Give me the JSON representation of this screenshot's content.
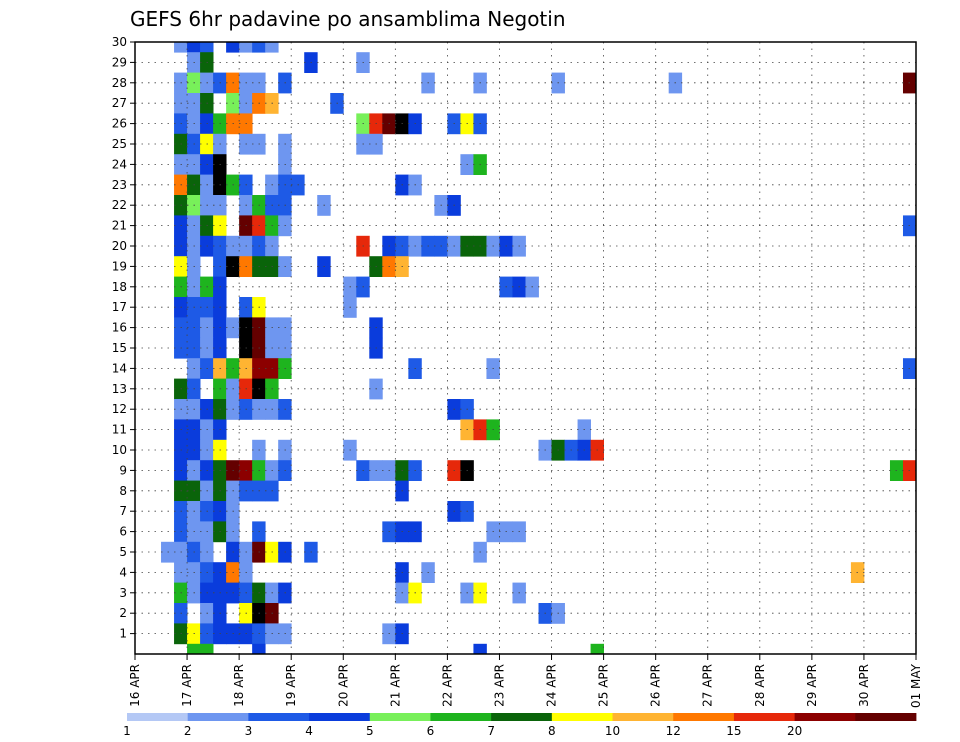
{
  "chart_data": {
    "type": "heatmap",
    "title": "GEFS 6hr padavine po ansamblima Negotin",
    "x_tick_labels": [
      "16 APR",
      "17 APR",
      "18 APR",
      "19 APR",
      "20 APR",
      "21 APR",
      "22 APR",
      "23 APR",
      "24 APR",
      "25 APR",
      "26 APR",
      "27 APR",
      "28 APR",
      "29 APR",
      "30 APR",
      "01 MAY"
    ],
    "y_tick_labels": [
      "1",
      "2",
      "3",
      "4",
      "5",
      "6",
      "7",
      "8",
      "9",
      "10",
      "11",
      "12",
      "13",
      "14",
      "15",
      "16",
      "17",
      "18",
      "19",
      "20",
      "21",
      "22",
      "23",
      "24",
      "25",
      "26",
      "27",
      "28",
      "29",
      "30"
    ],
    "xlim": [
      0,
      60
    ],
    "ylim": [
      0,
      30
    ],
    "grid": true,
    "color_scale": {
      "labels": [
        "1",
        "2",
        "3",
        "4",
        "5",
        "6",
        "7",
        "8",
        "10",
        "12",
        "15",
        "20"
      ],
      "colors": [
        "#b4c8f5",
        "#6e96f0",
        "#1e5ae6",
        "#0a3cdc",
        "#78f05a",
        "#1eb41e",
        "#0a640a",
        "#ffff00",
        "#ffb432",
        "#ff7800",
        "#e6280a",
        "#8c0000",
        "#640000"
      ]
    },
    "cells": [
      [
        3,
        30,
        1
      ],
      [
        4,
        30,
        3
      ],
      [
        5,
        30,
        2
      ],
      [
        7,
        30,
        3
      ],
      [
        8,
        30,
        1
      ],
      [
        9,
        30,
        2
      ],
      [
        10,
        30,
        1
      ],
      [
        4,
        29,
        1
      ],
      [
        5,
        29,
        6
      ],
      [
        13,
        29,
        3
      ],
      [
        17,
        29,
        1
      ],
      [
        3,
        28,
        1
      ],
      [
        4,
        28,
        4
      ],
      [
        5,
        28,
        1
      ],
      [
        6,
        28,
        2
      ],
      [
        7,
        28,
        9
      ],
      [
        8,
        28,
        1
      ],
      [
        9,
        28,
        1
      ],
      [
        11,
        28,
        2
      ],
      [
        22,
        28,
        1
      ],
      [
        26,
        28,
        1
      ],
      [
        32,
        28,
        1
      ],
      [
        41,
        28,
        1
      ],
      [
        59,
        28,
        12
      ],
      [
        3,
        27,
        1
      ],
      [
        4,
        27,
        1
      ],
      [
        5,
        27,
        6
      ],
      [
        7,
        27,
        4
      ],
      [
        8,
        27,
        1
      ],
      [
        9,
        27,
        9
      ],
      [
        10,
        27,
        8
      ],
      [
        15,
        27,
        2
      ],
      [
        3,
        26,
        2
      ],
      [
        4,
        26,
        1
      ],
      [
        5,
        26,
        3
      ],
      [
        6,
        26,
        5
      ],
      [
        7,
        26,
        9
      ],
      [
        8,
        26,
        9
      ],
      [
        17,
        26,
        4
      ],
      [
        18,
        26,
        10
      ],
      [
        19,
        26,
        12
      ],
      [
        20,
        26,
        13
      ],
      [
        21,
        26,
        3
      ],
      [
        24,
        26,
        2
      ],
      [
        25,
        26,
        7
      ],
      [
        26,
        26,
        2
      ],
      [
        3,
        25,
        6
      ],
      [
        4,
        25,
        2
      ],
      [
        5,
        25,
        7
      ],
      [
        6,
        25,
        1
      ],
      [
        8,
        25,
        1
      ],
      [
        9,
        25,
        1
      ],
      [
        11,
        25,
        1
      ],
      [
        17,
        25,
        1
      ],
      [
        18,
        25,
        1
      ],
      [
        3,
        24,
        1
      ],
      [
        4,
        24,
        1
      ],
      [
        5,
        24,
        3
      ],
      [
        6,
        24,
        13
      ],
      [
        11,
        24,
        1
      ],
      [
        25,
        24,
        1
      ],
      [
        26,
        24,
        5
      ],
      [
        3,
        23,
        9
      ],
      [
        4,
        23,
        6
      ],
      [
        5,
        23,
        1
      ],
      [
        6,
        23,
        13
      ],
      [
        7,
        23,
        5
      ],
      [
        8,
        23,
        2
      ],
      [
        10,
        23,
        1
      ],
      [
        11,
        23,
        2
      ],
      [
        12,
        23,
        2
      ],
      [
        20,
        23,
        3
      ],
      [
        21,
        23,
        1
      ],
      [
        3,
        22,
        6
      ],
      [
        4,
        22,
        4
      ],
      [
        5,
        22,
        1
      ],
      [
        6,
        22,
        1
      ],
      [
        8,
        22,
        1
      ],
      [
        9,
        22,
        5
      ],
      [
        10,
        22,
        2
      ],
      [
        11,
        22,
        2
      ],
      [
        14,
        22,
        1
      ],
      [
        23,
        22,
        1
      ],
      [
        24,
        22,
        3
      ],
      [
        3,
        21,
        3
      ],
      [
        4,
        21,
        1
      ],
      [
        5,
        21,
        6
      ],
      [
        6,
        21,
        7
      ],
      [
        8,
        21,
        12
      ],
      [
        9,
        21,
        10
      ],
      [
        10,
        21,
        5
      ],
      [
        11,
        21,
        1
      ],
      [
        59,
        21,
        2
      ],
      [
        3,
        20,
        3
      ],
      [
        4,
        20,
        1
      ],
      [
        5,
        20,
        3
      ],
      [
        6,
        20,
        2
      ],
      [
        7,
        20,
        1
      ],
      [
        8,
        20,
        1
      ],
      [
        9,
        20,
        2
      ],
      [
        10,
        20,
        1
      ],
      [
        17,
        20,
        10
      ],
      [
        19,
        20,
        3
      ],
      [
        20,
        20,
        2
      ],
      [
        21,
        20,
        1
      ],
      [
        22,
        20,
        2
      ],
      [
        23,
        20,
        2
      ],
      [
        24,
        20,
        1
      ],
      [
        25,
        20,
        6
      ],
      [
        26,
        20,
        6
      ],
      [
        27,
        20,
        1
      ],
      [
        28,
        20,
        3
      ],
      [
        29,
        20,
        1
      ],
      [
        3,
        19,
        7
      ],
      [
        4,
        19,
        1
      ],
      [
        6,
        19,
        2
      ],
      [
        7,
        19,
        13
      ],
      [
        8,
        19,
        9
      ],
      [
        9,
        19,
        6
      ],
      [
        10,
        19,
        6
      ],
      [
        11,
        19,
        1
      ],
      [
        14,
        19,
        3
      ],
      [
        18,
        19,
        6
      ],
      [
        19,
        19,
        9
      ],
      [
        20,
        19,
        8
      ],
      [
        3,
        18,
        5
      ],
      [
        4,
        18,
        1
      ],
      [
        5,
        18,
        5
      ],
      [
        6,
        18,
        3
      ],
      [
        16,
        18,
        1
      ],
      [
        17,
        18,
        2
      ],
      [
        28,
        18,
        2
      ],
      [
        29,
        18,
        3
      ],
      [
        30,
        18,
        1
      ],
      [
        3,
        17,
        3
      ],
      [
        4,
        17,
        2
      ],
      [
        5,
        17,
        2
      ],
      [
        6,
        17,
        3
      ],
      [
        8,
        17,
        2
      ],
      [
        9,
        17,
        7
      ],
      [
        16,
        17,
        1
      ],
      [
        3,
        16,
        2
      ],
      [
        4,
        16,
        2
      ],
      [
        5,
        16,
        1
      ],
      [
        6,
        16,
        3
      ],
      [
        7,
        16,
        1
      ],
      [
        8,
        16,
        13
      ],
      [
        9,
        16,
        12
      ],
      [
        10,
        16,
        1
      ],
      [
        11,
        16,
        1
      ],
      [
        18,
        16,
        3
      ],
      [
        3,
        15,
        2
      ],
      [
        4,
        15,
        2
      ],
      [
        5,
        15,
        1
      ],
      [
        6,
        15,
        3
      ],
      [
        8,
        15,
        13
      ],
      [
        9,
        15,
        12
      ],
      [
        10,
        15,
        1
      ],
      [
        11,
        15,
        1
      ],
      [
        18,
        15,
        3
      ],
      [
        4,
        14,
        1
      ],
      [
        5,
        14,
        2
      ],
      [
        6,
        14,
        8
      ],
      [
        7,
        14,
        5
      ],
      [
        8,
        14,
        8
      ],
      [
        9,
        14,
        11
      ],
      [
        10,
        14,
        11
      ],
      [
        11,
        14,
        5
      ],
      [
        21,
        14,
        2
      ],
      [
        27,
        14,
        1
      ],
      [
        59,
        14,
        2
      ],
      [
        3,
        13,
        6
      ],
      [
        4,
        13,
        2
      ],
      [
        6,
        13,
        5
      ],
      [
        7,
        13,
        1
      ],
      [
        8,
        13,
        10
      ],
      [
        9,
        13,
        13
      ],
      [
        10,
        13,
        5
      ],
      [
        18,
        13,
        1
      ],
      [
        3,
        12,
        1
      ],
      [
        4,
        12,
        1
      ],
      [
        5,
        12,
        3
      ],
      [
        6,
        12,
        6
      ],
      [
        7,
        12,
        1
      ],
      [
        8,
        12,
        2
      ],
      [
        9,
        12,
        1
      ],
      [
        10,
        12,
        1
      ],
      [
        11,
        12,
        2
      ],
      [
        24,
        12,
        3
      ],
      [
        25,
        12,
        2
      ],
      [
        3,
        11,
        3
      ],
      [
        4,
        11,
        3
      ],
      [
        5,
        11,
        1
      ],
      [
        6,
        11,
        3
      ],
      [
        25,
        11,
        8
      ],
      [
        26,
        11,
        10
      ],
      [
        27,
        11,
        5
      ],
      [
        34,
        11,
        1
      ],
      [
        3,
        10,
        3
      ],
      [
        4,
        10,
        3
      ],
      [
        5,
        10,
        1
      ],
      [
        6,
        10,
        7
      ],
      [
        9,
        10,
        1
      ],
      [
        11,
        10,
        1
      ],
      [
        16,
        10,
        1
      ],
      [
        31,
        10,
        1
      ],
      [
        32,
        10,
        6
      ],
      [
        33,
        10,
        2
      ],
      [
        34,
        10,
        3
      ],
      [
        35,
        10,
        10
      ],
      [
        3,
        9,
        3
      ],
      [
        4,
        9,
        1
      ],
      [
        5,
        9,
        3
      ],
      [
        6,
        9,
        6
      ],
      [
        7,
        9,
        12
      ],
      [
        8,
        9,
        11
      ],
      [
        9,
        9,
        5
      ],
      [
        10,
        9,
        1
      ],
      [
        11,
        9,
        2
      ],
      [
        17,
        9,
        2
      ],
      [
        18,
        9,
        1
      ],
      [
        19,
        9,
        1
      ],
      [
        20,
        9,
        6
      ],
      [
        21,
        9,
        2
      ],
      [
        24,
        9,
        10
      ],
      [
        25,
        9,
        13
      ],
      [
        58,
        9,
        5
      ],
      [
        59,
        9,
        10
      ],
      [
        3,
        8,
        6
      ],
      [
        4,
        8,
        6
      ],
      [
        5,
        8,
        1
      ],
      [
        6,
        8,
        6
      ],
      [
        7,
        8,
        1
      ],
      [
        8,
        8,
        2
      ],
      [
        9,
        8,
        2
      ],
      [
        10,
        8,
        2
      ],
      [
        20,
        8,
        3
      ],
      [
        3,
        7,
        2
      ],
      [
        4,
        7,
        1
      ],
      [
        5,
        7,
        2
      ],
      [
        6,
        7,
        3
      ],
      [
        7,
        7,
        1
      ],
      [
        24,
        7,
        3
      ],
      [
        25,
        7,
        2
      ],
      [
        3,
        6,
        2
      ],
      [
        4,
        6,
        1
      ],
      [
        5,
        6,
        1
      ],
      [
        6,
        6,
        6
      ],
      [
        7,
        6,
        1
      ],
      [
        9,
        6,
        2
      ],
      [
        19,
        6,
        2
      ],
      [
        20,
        6,
        3
      ],
      [
        21,
        6,
        3
      ],
      [
        27,
        6,
        1
      ],
      [
        28,
        6,
        1
      ],
      [
        29,
        6,
        1
      ],
      [
        2,
        5,
        1
      ],
      [
        3,
        5,
        1
      ],
      [
        4,
        5,
        2
      ],
      [
        5,
        5,
        1
      ],
      [
        7,
        5,
        3
      ],
      [
        8,
        5,
        1
      ],
      [
        9,
        5,
        12
      ],
      [
        10,
        5,
        7
      ],
      [
        11,
        5,
        3
      ],
      [
        13,
        5,
        2
      ],
      [
        26,
        5,
        1
      ],
      [
        3,
        4,
        1
      ],
      [
        4,
        4,
        1
      ],
      [
        5,
        4,
        2
      ],
      [
        6,
        4,
        3
      ],
      [
        7,
        4,
        9
      ],
      [
        8,
        4,
        1
      ],
      [
        20,
        4,
        3
      ],
      [
        22,
        4,
        1
      ],
      [
        55,
        4,
        8
      ],
      [
        3,
        3,
        5
      ],
      [
        4,
        3,
        1
      ],
      [
        5,
        3,
        3
      ],
      [
        6,
        3,
        3
      ],
      [
        7,
        3,
        3
      ],
      [
        8,
        3,
        2
      ],
      [
        9,
        3,
        6
      ],
      [
        10,
        3,
        1
      ],
      [
        11,
        3,
        3
      ],
      [
        20,
        3,
        1
      ],
      [
        21,
        3,
        7
      ],
      [
        25,
        3,
        1
      ],
      [
        26,
        3,
        7
      ],
      [
        29,
        3,
        1
      ],
      [
        3,
        2,
        2
      ],
      [
        5,
        2,
        1
      ],
      [
        6,
        2,
        3
      ],
      [
        8,
        2,
        7
      ],
      [
        9,
        2,
        13
      ],
      [
        10,
        2,
        12
      ],
      [
        31,
        2,
        2
      ],
      [
        32,
        2,
        1
      ],
      [
        3,
        1,
        6
      ],
      [
        4,
        1,
        7
      ],
      [
        5,
        1,
        2
      ],
      [
        6,
        1,
        3
      ],
      [
        7,
        1,
        3
      ],
      [
        8,
        1,
        3
      ],
      [
        9,
        1,
        2
      ],
      [
        10,
        1,
        1
      ],
      [
        11,
        1,
        1
      ],
      [
        19,
        1,
        1
      ],
      [
        20,
        1,
        3
      ],
      [
        4,
        0,
        5
      ],
      [
        5,
        0,
        5
      ],
      [
        9,
        0,
        3
      ],
      [
        26,
        0,
        3
      ],
      [
        35,
        0,
        5
      ]
    ]
  }
}
